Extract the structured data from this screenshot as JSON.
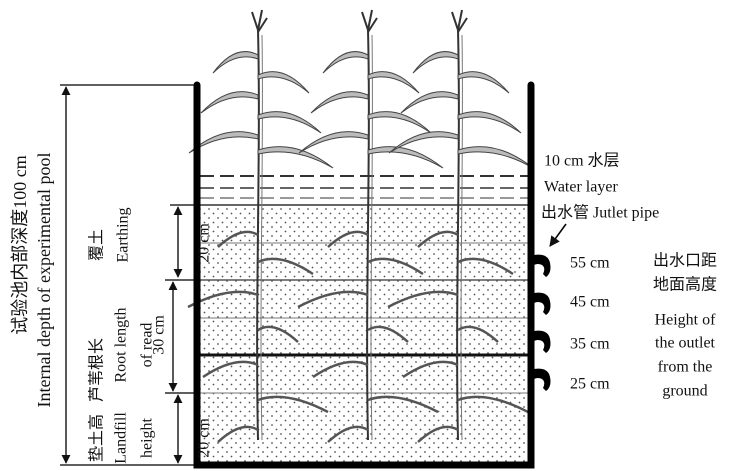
{
  "left_label": {
    "zh": "试验池内部深度100 cm",
    "en": "Internal depth of experimental pool"
  },
  "layers": [
    {
      "zh": "覆土",
      "en": [
        "Earthing"
      ],
      "depth": "20 cm"
    },
    {
      "zh": "芦苇根长",
      "en": [
        "Root length",
        "of read"
      ],
      "depth": "30 cm"
    },
    {
      "zh": "垫土高",
      "en": [
        "Landfill",
        "height"
      ],
      "depth": "20 cm"
    }
  ],
  "water": {
    "zh": "10 cm 水层",
    "en": "Water layer"
  },
  "pipe": "出水管 Jutlet pipe",
  "outlets": [
    "55 cm",
    "45 cm",
    "35 cm",
    "25 cm"
  ],
  "outlet_note": [
    "出水口距",
    "地面高度",
    "Height of",
    "the outlet",
    "from the",
    "ground"
  ]
}
